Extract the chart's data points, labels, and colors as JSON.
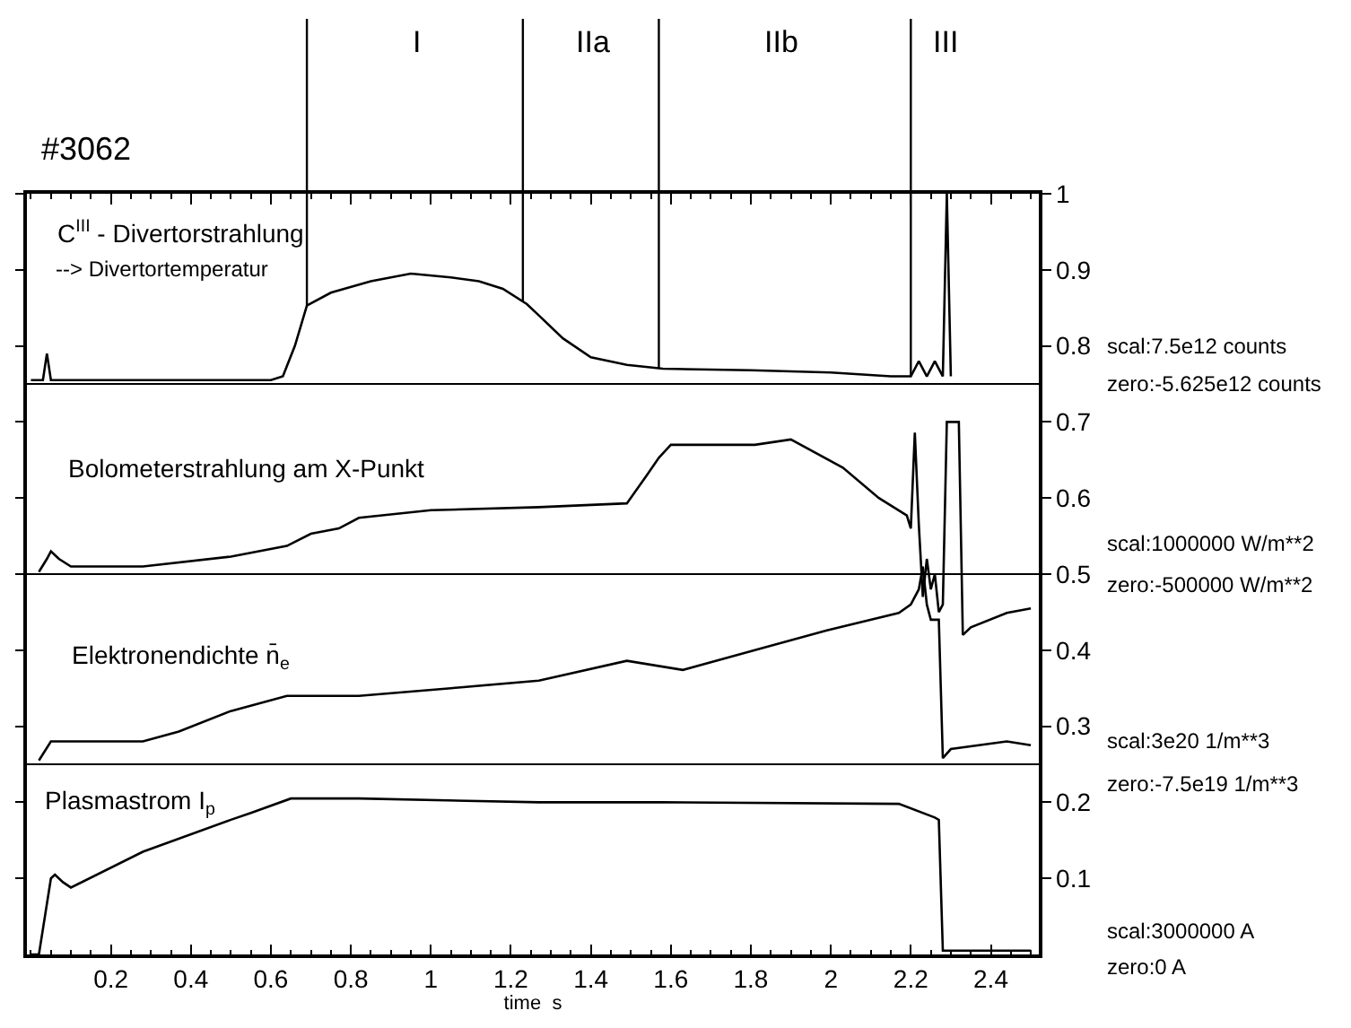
{
  "chart_data": {
    "type": "line",
    "xlabel": "time  s",
    "xlim": [
      -0.01,
      2.52
    ],
    "xticks": [
      0.2,
      0.4,
      0.6,
      0.8,
      1,
      1.2,
      1.4,
      1.6,
      1.8,
      2,
      2.2,
      2.4
    ],
    "ylim": [
      0,
      1
    ],
    "yticks": [
      0.1,
      0.2,
      0.3,
      0.4,
      0.5,
      0.6,
      0.7,
      0.8,
      0.9,
      1
    ],
    "legend": "left",
    "marker": "none",
    "line_style": "solid",
    "series": [
      {
        "name": "C$^{III}$ - Divertorstrahlung",
        "color": "#000000",
        "x": [
          0.0,
          0.03,
          0.04,
          0.05,
          0.1,
          0.3,
          0.5,
          0.6,
          0.63,
          0.66,
          0.69,
          0.75,
          0.85,
          0.95,
          1.05,
          1.12,
          1.18,
          1.24,
          1.27,
          1.33,
          1.4,
          1.49,
          1.58,
          1.8,
          2.0,
          2.15,
          2.2,
          2.22,
          2.24,
          2.26,
          2.28,
          2.29,
          2.3
        ],
        "values": [
          0.755,
          0.755,
          0.79,
          0.755,
          0.755,
          0.755,
          0.755,
          0.755,
          0.76,
          0.8,
          0.853,
          0.87,
          0.885,
          0.895,
          0.89,
          0.885,
          0.875,
          0.855,
          0.84,
          0.81,
          0.785,
          0.775,
          0.77,
          0.768,
          0.765,
          0.76,
          0.76,
          0.78,
          0.76,
          0.78,
          0.76,
          1.0,
          0.76
        ]
      },
      {
        "name": "Bolometerstrahlung am X-Punkt",
        "color": "#000000",
        "x": [
          0.02,
          0.04,
          0.05,
          0.07,
          0.1,
          0.28,
          0.5,
          0.64,
          0.7,
          0.77,
          0.82,
          1.0,
          1.27,
          1.49,
          1.54,
          1.57,
          1.6,
          1.81,
          1.9,
          2.03,
          2.12,
          2.19,
          2.2,
          2.21,
          2.22,
          2.23,
          2.24,
          2.25,
          2.26,
          2.27,
          2.28,
          2.29,
          2.3,
          2.32,
          2.33,
          2.35,
          2.44,
          2.5
        ],
        "values": [
          0.503,
          0.52,
          0.53,
          0.52,
          0.51,
          0.51,
          0.523,
          0.537,
          0.553,
          0.56,
          0.574,
          0.584,
          0.588,
          0.593,
          0.63,
          0.653,
          0.67,
          0.67,
          0.677,
          0.64,
          0.6,
          0.577,
          0.56,
          0.686,
          0.565,
          0.47,
          0.52,
          0.48,
          0.5,
          0.45,
          0.46,
          0.7,
          0.7,
          0.7,
          0.42,
          0.43,
          0.449,
          0.455
        ]
      },
      {
        "name": "Elektronendichte n̄$_{e}$",
        "color": "#000000",
        "x": [
          0.02,
          0.05,
          0.14,
          0.28,
          0.37,
          0.5,
          0.64,
          0.82,
          1.05,
          1.27,
          1.49,
          1.63,
          1.81,
          1.99,
          2.17,
          2.2,
          2.22,
          2.23,
          2.24,
          2.25,
          2.27,
          2.28,
          2.3,
          2.44,
          2.5
        ],
        "values": [
          0.255,
          0.28,
          0.28,
          0.28,
          0.293,
          0.32,
          0.34,
          0.34,
          0.35,
          0.36,
          0.386,
          0.374,
          0.4,
          0.426,
          0.449,
          0.46,
          0.48,
          0.51,
          0.46,
          0.44,
          0.44,
          0.258,
          0.27,
          0.28,
          0.275
        ]
      },
      {
        "name": "Plasmastrom I$_{p}$",
        "color": "#000000",
        "x": [
          0.0,
          0.02,
          0.05,
          0.06,
          0.08,
          0.1,
          0.28,
          0.5,
          0.55,
          0.65,
          0.82,
          1.27,
          1.58,
          2.17,
          2.26,
          2.27,
          2.28,
          2.5
        ],
        "values": [
          0,
          0,
          0.1,
          0.105,
          0.095,
          0.088,
          0.135,
          0.177,
          0.186,
          0.205,
          0.205,
          0.2,
          0.2,
          0.198,
          0.18,
          0.177,
          0.005,
          0.005
        ]
      }
    ],
    "ref_lines": [
      {
        "axis": "y",
        "value": 0.75,
        "color": "#000000"
      },
      {
        "axis": "y",
        "value": 0.5,
        "color": "#000000"
      },
      {
        "axis": "y",
        "value": 0.25,
        "color": "#000000"
      },
      {
        "axis": "x",
        "value": 0.69,
        "color": "#000000"
      },
      {
        "axis": "x",
        "value": 1.23,
        "color": "#000000"
      },
      {
        "axis": "x",
        "value": 1.57,
        "color": "#000000"
      },
      {
        "axis": "x",
        "value": 2.2,
        "color": "#000000"
      }
    ],
    "annotations": [
      "I",
      "IIa",
      "IIb",
      "III",
      "#3062",
      "--> Divertortemperatur",
      "scal:7.5e12 counts",
      "zero:-5.625e12 counts",
      "scal:1000000 W/m**2",
      "zero:-500000 W/m**2",
      "scal:3e20 1/m**3",
      "zero:-7.5e19 1/m**3",
      "scal:3000000 A",
      "zero:0 A"
    ]
  }
}
